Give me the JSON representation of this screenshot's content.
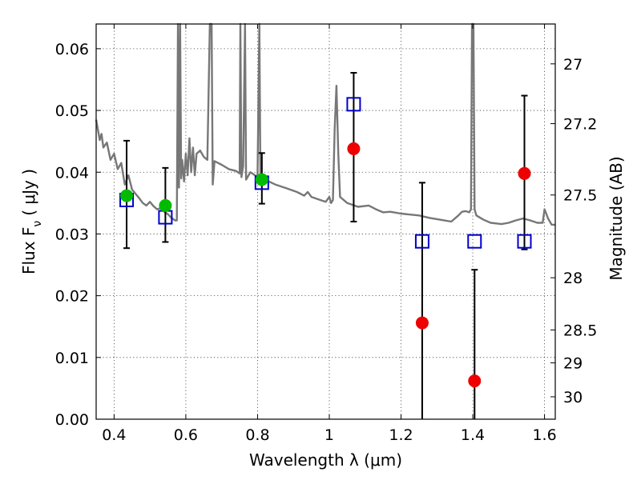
{
  "chart_data": {
    "type": "scatter",
    "title": "",
    "xlabel": "Wavelength  λ (μm)",
    "ylabel": "Flux  F",
    "ylabel_sub": "ν",
    "ylabel_unit": "(  μJy )",
    "y2label": "Magnitude (AB)",
    "xlim": [
      0.35,
      1.63
    ],
    "ylim": [
      0.0,
      0.064
    ],
    "grid": true,
    "x_ticks": [
      0.4,
      0.6,
      0.8,
      1.0,
      1.2,
      1.4,
      1.6
    ],
    "x_tick_labels": [
      "0.4",
      "0.6",
      "0.8",
      "1",
      "1.2",
      "1.4",
      "1.6"
    ],
    "y_ticks": [
      0.0,
      0.01,
      0.02,
      0.03,
      0.04,
      0.05,
      0.06
    ],
    "y_tick_labels": [
      "0.00",
      "0.01",
      "0.02",
      "0.03",
      "0.04",
      "0.05",
      "0.06"
    ],
    "y2_ticks": [
      27,
      27.2,
      27.5,
      28,
      28.5,
      29,
      30
    ],
    "y2_tick_labels": [
      "27",
      "27.2",
      "27.5",
      "28",
      "28.5",
      "29",
      "30"
    ],
    "series": [
      {
        "marker": "circle",
        "color": "#00bb00",
        "points": [
          {
            "x": 0.435,
            "y": 0.0362,
            "err_lo": 0.0277,
            "err_hi": 0.0451
          },
          {
            "x": 0.543,
            "y": 0.0346,
            "err_lo": 0.0287,
            "err_hi": 0.0407
          },
          {
            "x": 0.812,
            "y": 0.0388,
            "err_lo": 0.0349,
            "err_hi": 0.0431
          }
        ]
      },
      {
        "marker": "circle",
        "color": "#ee0000",
        "points": [
          {
            "x": 1.068,
            "y": 0.0438,
            "err_lo": 0.032,
            "err_hi": 0.0561
          },
          {
            "x": 1.259,
            "y": 0.0156,
            "err_lo": 0.0,
            "err_hi": 0.0383
          },
          {
            "x": 1.405,
            "y": 0.0062,
            "err_lo": 0.0,
            "err_hi": 0.0242
          },
          {
            "x": 1.544,
            "y": 0.0398,
            "err_lo": 0.0275,
            "err_hi": 0.0524
          }
        ]
      },
      {
        "marker": "open-square",
        "color": "#0000cc",
        "points": [
          {
            "x": 0.435,
            "y": 0.0355
          },
          {
            "x": 0.543,
            "y": 0.0327
          },
          {
            "x": 0.812,
            "y": 0.0383
          },
          {
            "x": 1.068,
            "y": 0.051
          },
          {
            "x": 1.259,
            "y": 0.0288
          },
          {
            "x": 1.405,
            "y": 0.0288
          },
          {
            "x": 1.544,
            "y": 0.0288
          }
        ]
      },
      {
        "marker": "line",
        "color": "#777777",
        "points": [
          {
            "x": 0.35,
            "y": 0.0485
          },
          {
            "x": 0.36,
            "y": 0.0452
          },
          {
            "x": 0.365,
            "y": 0.0462
          },
          {
            "x": 0.37,
            "y": 0.044
          },
          {
            "x": 0.38,
            "y": 0.0448
          },
          {
            "x": 0.39,
            "y": 0.042
          },
          {
            "x": 0.4,
            "y": 0.043
          },
          {
            "x": 0.41,
            "y": 0.0405
          },
          {
            "x": 0.42,
            "y": 0.0415
          },
          {
            "x": 0.43,
            "y": 0.038
          },
          {
            "x": 0.44,
            "y": 0.0395
          },
          {
            "x": 0.45,
            "y": 0.0372
          },
          {
            "x": 0.46,
            "y": 0.0365
          },
          {
            "x": 0.47,
            "y": 0.0358
          },
          {
            "x": 0.48,
            "y": 0.035
          },
          {
            "x": 0.49,
            "y": 0.0346
          },
          {
            "x": 0.5,
            "y": 0.0352
          },
          {
            "x": 0.51,
            "y": 0.0345
          },
          {
            "x": 0.52,
            "y": 0.034
          },
          {
            "x": 0.53,
            "y": 0.0342
          },
          {
            "x": 0.54,
            "y": 0.0336
          },
          {
            "x": 0.55,
            "y": 0.0332
          },
          {
            "x": 0.56,
            "y": 0.0326
          },
          {
            "x": 0.57,
            "y": 0.0322
          },
          {
            "x": 0.575,
            "y": 0.0322
          },
          {
            "x": 0.578,
            "y": 0.064
          },
          {
            "x": 0.581,
            "y": 0.0375
          },
          {
            "x": 0.584,
            "y": 0.064
          },
          {
            "x": 0.587,
            "y": 0.039
          },
          {
            "x": 0.59,
            "y": 0.042
          },
          {
            "x": 0.595,
            "y": 0.0385
          },
          {
            "x": 0.6,
            "y": 0.043
          },
          {
            "x": 0.605,
            "y": 0.0395
          },
          {
            "x": 0.61,
            "y": 0.0455
          },
          {
            "x": 0.615,
            "y": 0.04
          },
          {
            "x": 0.62,
            "y": 0.044
          },
          {
            "x": 0.625,
            "y": 0.0395
          },
          {
            "x": 0.63,
            "y": 0.043
          },
          {
            "x": 0.64,
            "y": 0.0435
          },
          {
            "x": 0.65,
            "y": 0.0425
          },
          {
            "x": 0.66,
            "y": 0.042
          },
          {
            "x": 0.667,
            "y": 0.064
          },
          {
            "x": 0.672,
            "y": 0.064
          },
          {
            "x": 0.675,
            "y": 0.038
          },
          {
            "x": 0.68,
            "y": 0.0418
          },
          {
            "x": 0.7,
            "y": 0.0412
          },
          {
            "x": 0.72,
            "y": 0.0405
          },
          {
            "x": 0.74,
            "y": 0.0402
          },
          {
            "x": 0.75,
            "y": 0.0398
          },
          {
            "x": 0.752,
            "y": 0.064
          },
          {
            "x": 0.755,
            "y": 0.0392
          },
          {
            "x": 0.76,
            "y": 0.041
          },
          {
            "x": 0.765,
            "y": 0.064
          },
          {
            "x": 0.768,
            "y": 0.0388
          },
          {
            "x": 0.78,
            "y": 0.04
          },
          {
            "x": 0.79,
            "y": 0.0396
          },
          {
            "x": 0.8,
            "y": 0.0392
          },
          {
            "x": 0.805,
            "y": 0.064
          },
          {
            "x": 0.808,
            "y": 0.0392
          },
          {
            "x": 0.82,
            "y": 0.0388
          },
          {
            "x": 0.85,
            "y": 0.038
          },
          {
            "x": 0.88,
            "y": 0.0374
          },
          {
            "x": 0.91,
            "y": 0.0368
          },
          {
            "x": 0.93,
            "y": 0.0362
          },
          {
            "x": 0.94,
            "y": 0.0368
          },
          {
            "x": 0.95,
            "y": 0.036
          },
          {
            "x": 0.97,
            "y": 0.0356
          },
          {
            "x": 0.99,
            "y": 0.0352
          },
          {
            "x": 1.0,
            "y": 0.036
          },
          {
            "x": 1.005,
            "y": 0.035
          },
          {
            "x": 1.01,
            "y": 0.0355
          },
          {
            "x": 1.015,
            "y": 0.047
          },
          {
            "x": 1.02,
            "y": 0.054
          },
          {
            "x": 1.025,
            "y": 0.043
          },
          {
            "x": 1.03,
            "y": 0.036
          },
          {
            "x": 1.05,
            "y": 0.035
          },
          {
            "x": 1.08,
            "y": 0.0344
          },
          {
            "x": 1.11,
            "y": 0.0346
          },
          {
            "x": 1.13,
            "y": 0.034
          },
          {
            "x": 1.15,
            "y": 0.0335
          },
          {
            "x": 1.17,
            "y": 0.0336
          },
          {
            "x": 1.2,
            "y": 0.0333
          },
          {
            "x": 1.25,
            "y": 0.033
          },
          {
            "x": 1.28,
            "y": 0.0326
          },
          {
            "x": 1.31,
            "y": 0.0323
          },
          {
            "x": 1.34,
            "y": 0.032
          },
          {
            "x": 1.36,
            "y": 0.033
          },
          {
            "x": 1.37,
            "y": 0.0336
          },
          {
            "x": 1.38,
            "y": 0.0337
          },
          {
            "x": 1.39,
            "y": 0.0335
          },
          {
            "x": 1.395,
            "y": 0.034
          },
          {
            "x": 1.398,
            "y": 0.064
          },
          {
            "x": 1.402,
            "y": 0.064
          },
          {
            "x": 1.405,
            "y": 0.034
          },
          {
            "x": 1.41,
            "y": 0.033
          },
          {
            "x": 1.43,
            "y": 0.0323
          },
          {
            "x": 1.45,
            "y": 0.0318
          },
          {
            "x": 1.48,
            "y": 0.0316
          },
          {
            "x": 1.5,
            "y": 0.0318
          },
          {
            "x": 1.52,
            "y": 0.0322
          },
          {
            "x": 1.54,
            "y": 0.0325
          },
          {
            "x": 1.56,
            "y": 0.0322
          },
          {
            "x": 1.58,
            "y": 0.0318
          },
          {
            "x": 1.595,
            "y": 0.0318
          },
          {
            "x": 1.6,
            "y": 0.034
          },
          {
            "x": 1.61,
            "y": 0.0325
          },
          {
            "x": 1.62,
            "y": 0.0315
          },
          {
            "x": 1.63,
            "y": 0.0315
          }
        ]
      }
    ]
  }
}
